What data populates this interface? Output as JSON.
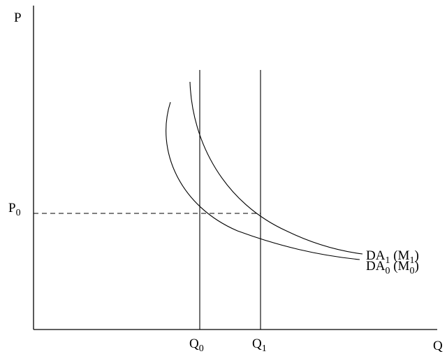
{
  "diagram": {
    "axis_labels": {
      "y": "P",
      "x": "Q"
    },
    "p0": {
      "main": "P",
      "sub": "0"
    },
    "q0": {
      "main": "Q",
      "sub": "0"
    },
    "q1": {
      "main": "Q",
      "sub": "1"
    },
    "curve_da1": {
      "main": "DA",
      "sub1": "1",
      "mid": " (M",
      "sub2": "1",
      "close": ")"
    },
    "curve_da0": {
      "main": "DA",
      "sub1": "0",
      "mid": " (M",
      "sub2": "0",
      "close": ")"
    }
  }
}
